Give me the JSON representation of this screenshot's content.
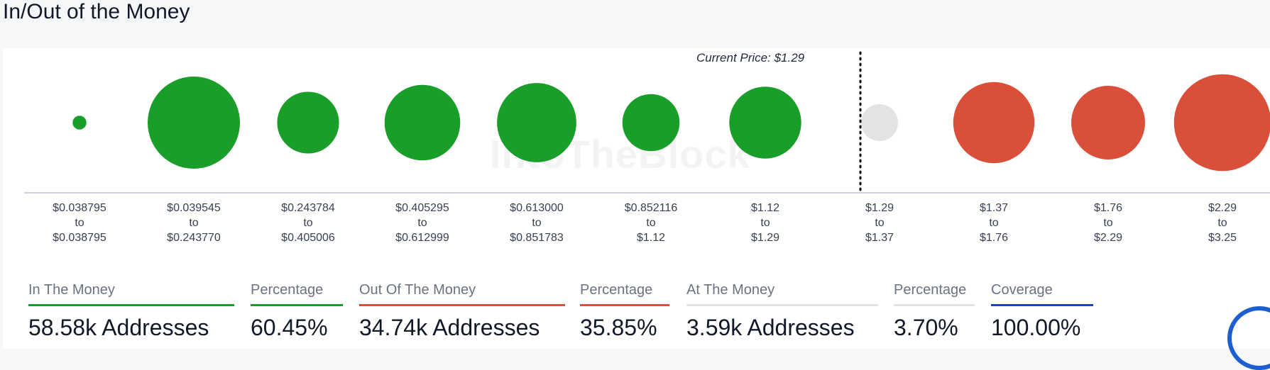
{
  "title": "In/Out of the Money",
  "watermark": "IntoTheBlock",
  "current_price_label": "Current Price: $1.29",
  "colors": {
    "in": "#1a9e2a",
    "at": "#e3e3e3",
    "out": "#d94f3a",
    "coverage": "#1d3fd9",
    "marker": "#111111",
    "axis": "#c9d3e3"
  },
  "chart_data": {
    "type": "scatter",
    "title": "",
    "xlabel": "",
    "ylabel": "",
    "bubble_scale": "relative size",
    "current_price": 1.29,
    "categories": [
      {
        "from": "$0.038795",
        "mid": "to",
        "to": "$0.038795",
        "status": "in",
        "size": 0.05
      },
      {
        "from": "$0.039545",
        "mid": "to",
        "to": "$0.243770",
        "status": "in",
        "size": 1.0
      },
      {
        "from": "$0.243784",
        "mid": "to",
        "to": "$0.405006",
        "status": "in",
        "size": 0.67
      },
      {
        "from": "$0.405295",
        "mid": "to",
        "to": "$0.612999",
        "status": "in",
        "size": 0.82
      },
      {
        "from": "$0.613000",
        "mid": "to",
        "to": "$0.851783",
        "status": "in",
        "size": 0.86
      },
      {
        "from": "$0.852116",
        "mid": "to",
        "to": "$1.12",
        "status": "in",
        "size": 0.62
      },
      {
        "from": "$1.12",
        "mid": "to",
        "to": "$1.29",
        "status": "in",
        "size": 0.78
      },
      {
        "from": "$1.29",
        "mid": "to",
        "to": "$1.37",
        "status": "at",
        "size": 0.4
      },
      {
        "from": "$1.37",
        "mid": "to",
        "to": "$1.76",
        "status": "out",
        "size": 0.88
      },
      {
        "from": "$1.76",
        "mid": "to",
        "to": "$2.29",
        "status": "out",
        "size": 0.8
      },
      {
        "from": "$2.29",
        "mid": "to",
        "to": "$3.25",
        "status": "out",
        "size": 1.05
      }
    ]
  },
  "stats": [
    {
      "label": "In The Money",
      "value": "58.58k Addresses",
      "color": "#1a9e2a"
    },
    {
      "label": "Percentage",
      "value": "60.45%",
      "color": "#1a9e2a"
    },
    {
      "label": "Out Of The Money",
      "value": "34.74k Addresses",
      "color": "#d94f3a"
    },
    {
      "label": "Percentage",
      "value": "35.85%",
      "color": "#d94f3a"
    },
    {
      "label": "At The Money",
      "value": "3.59k Addresses",
      "color": "#e3e3e3"
    },
    {
      "label": "Percentage",
      "value": "3.70%",
      "color": "#e3e3e3"
    },
    {
      "label": "Coverage",
      "value": "100.00%",
      "color": "#1d3fd9"
    }
  ]
}
